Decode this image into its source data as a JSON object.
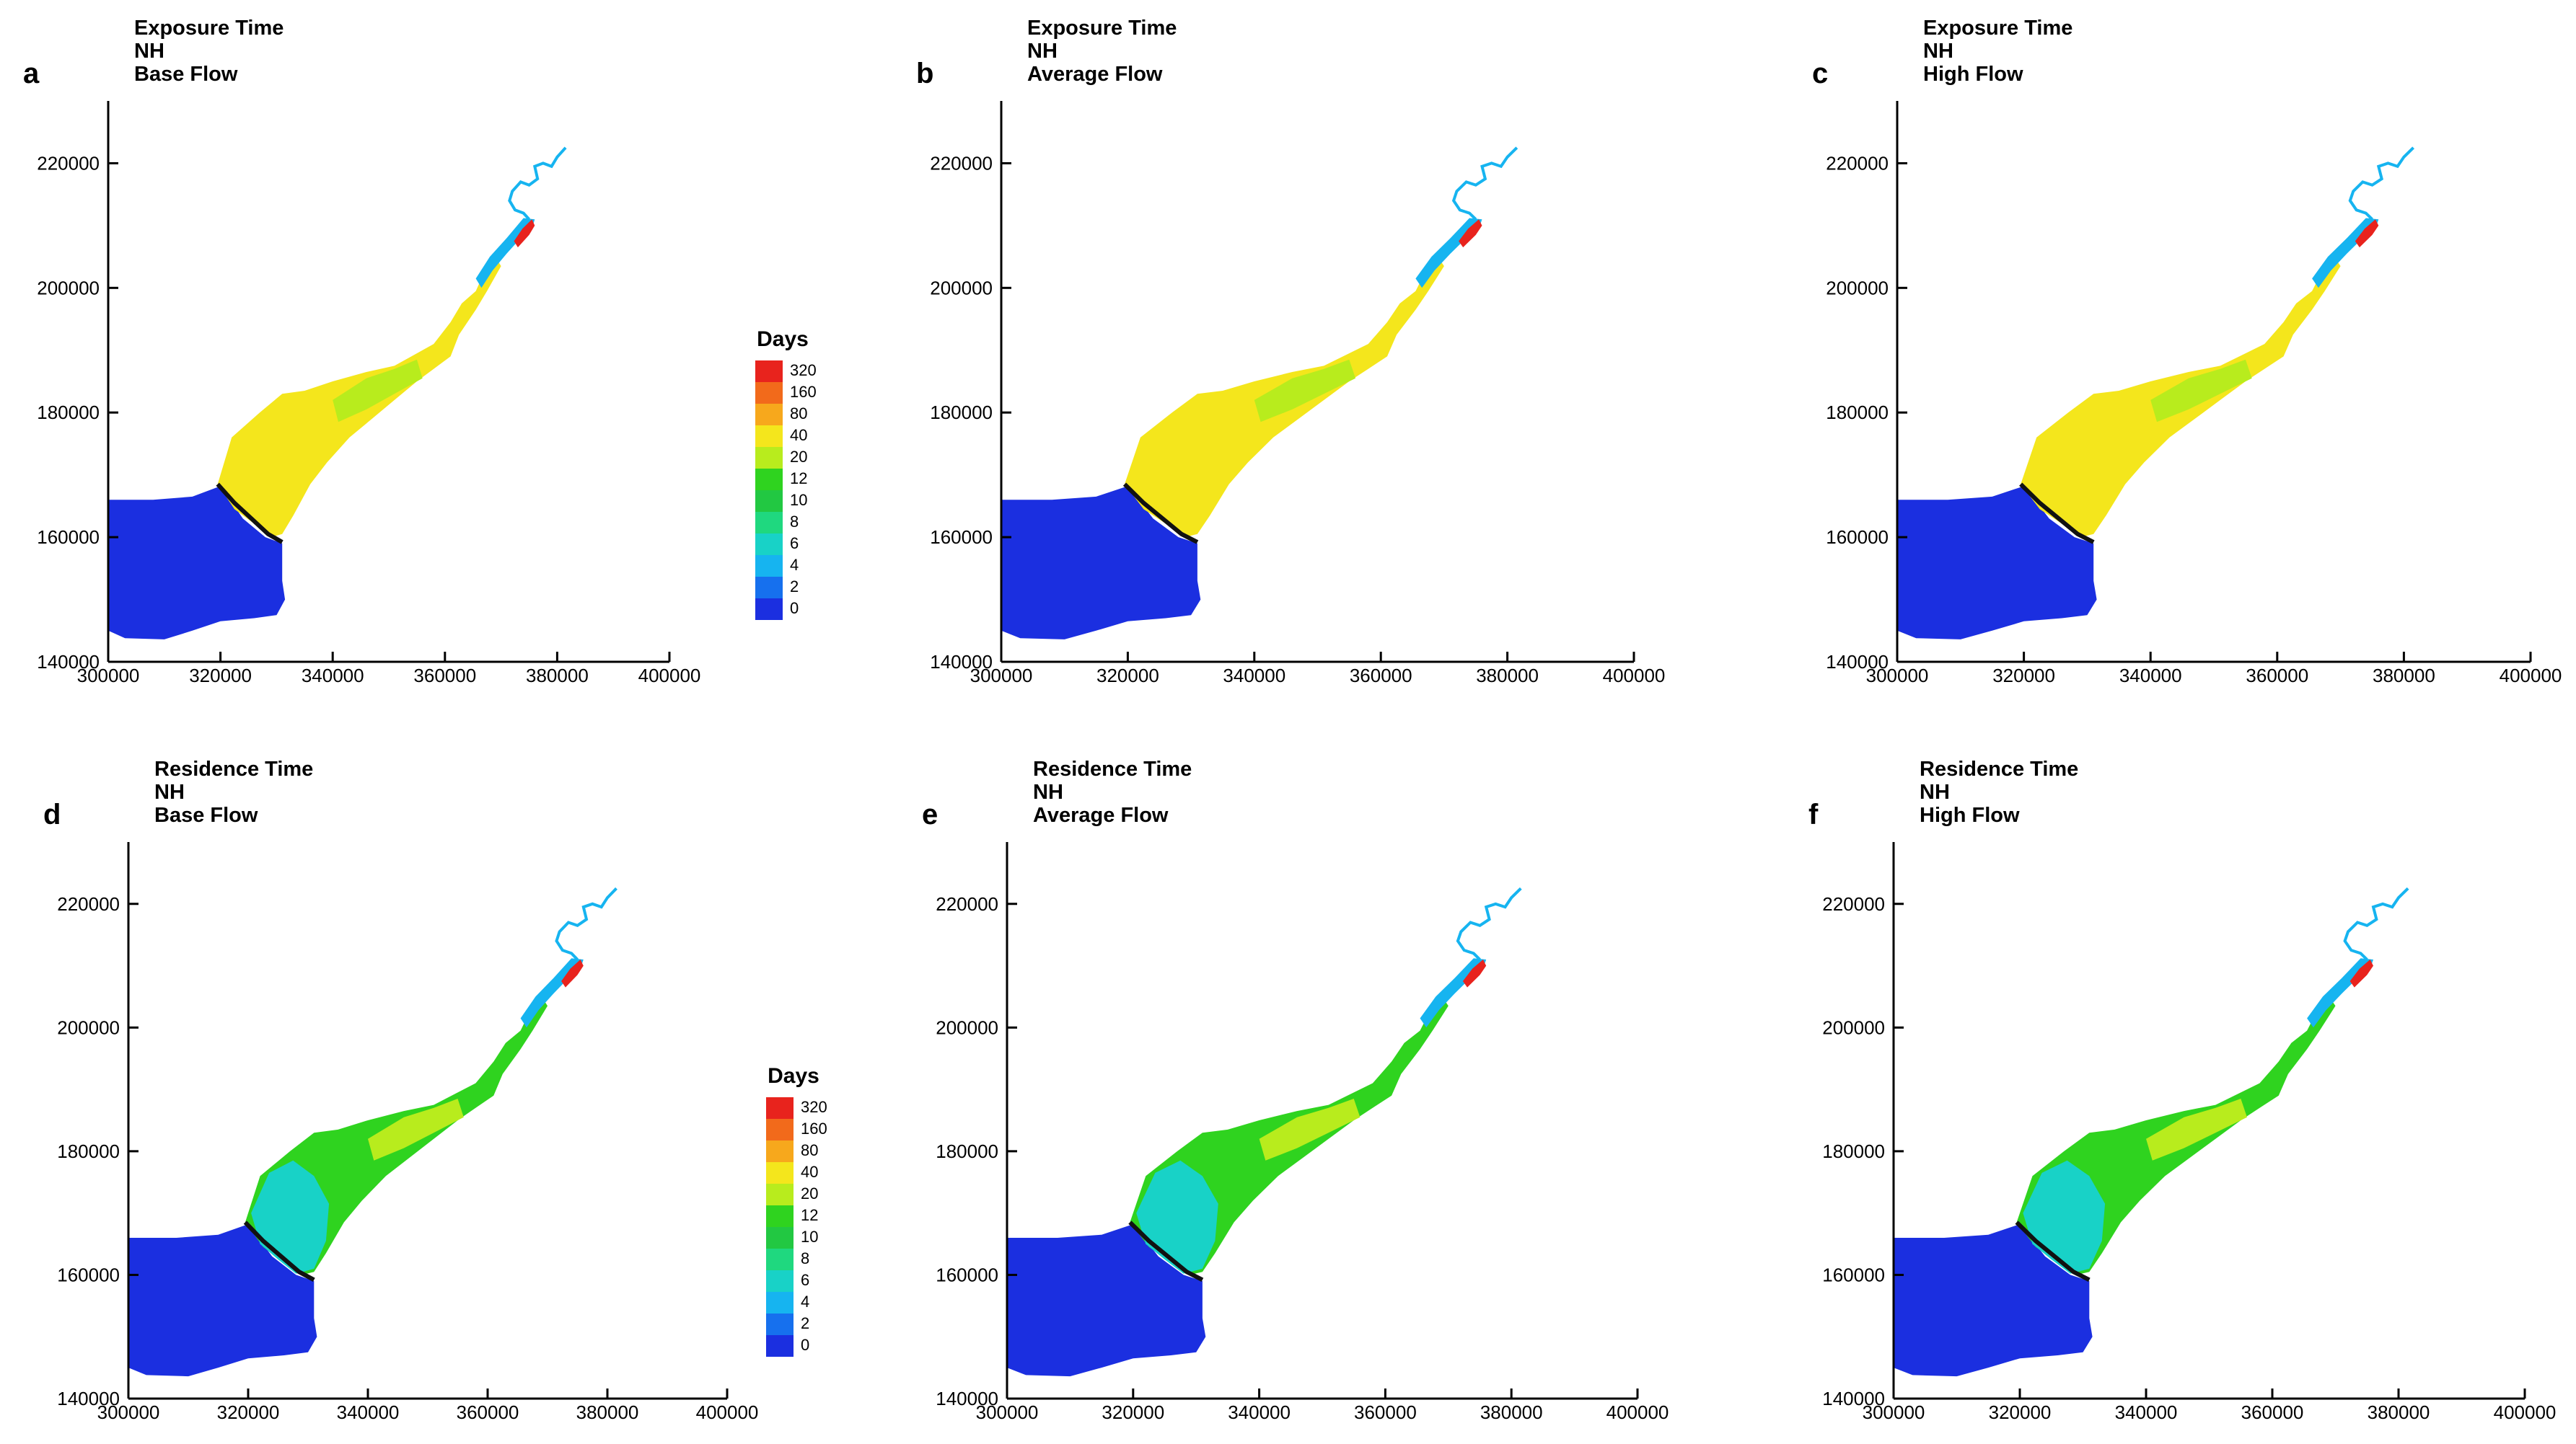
{
  "colors": {
    "axis": "#000000",
    "estuary_base": "#1f2ee0"
  },
  "legend": {
    "title": "Days",
    "levels": [
      "320",
      "160",
      "80",
      "40",
      "20",
      "12",
      "10",
      "8",
      "6",
      "4",
      "2",
      "0"
    ],
    "colors": [
      "#e8231d",
      "#f26a1b",
      "#f7a81c",
      "#f4e61c",
      "#b8ec1d",
      "#2fd31f",
      "#22c842",
      "#1fd87f",
      "#18d2c7",
      "#16b4f0",
      "#1670ee",
      "#1b2fe0"
    ]
  },
  "chart_data": [
    {
      "type": "map",
      "panel": "a",
      "title_lines": [
        "Exposure Time",
        "NH",
        "Base Flow"
      ],
      "xlabels": [
        "300000",
        "320000",
        "340000",
        "360000",
        "380000",
        "400000"
      ],
      "ylabels": [
        "140000",
        "160000",
        "180000",
        "200000",
        "220000"
      ],
      "xlim": [
        300000,
        400000
      ],
      "ylim": [
        140000,
        230000
      ],
      "fill_regions": {
        "ocean": "0",
        "bay": "40",
        "upper_bay": "20",
        "channel": "4",
        "river_mouth": "320"
      },
      "legend_visible": true
    },
    {
      "type": "map",
      "panel": "b",
      "title_lines": [
        "Exposure Time",
        "NH",
        "Average Flow"
      ],
      "xlabels": [
        "300000",
        "320000",
        "340000",
        "360000",
        "380000",
        "400000"
      ],
      "ylabels": [
        "140000",
        "160000",
        "180000",
        "200000",
        "220000"
      ],
      "xlim": [
        300000,
        400000
      ],
      "ylim": [
        140000,
        230000
      ],
      "fill_regions": {
        "ocean": "0",
        "bay": "40",
        "upper_bay": "20",
        "channel": "4",
        "river_mouth": "320"
      },
      "legend_visible": false
    },
    {
      "type": "map",
      "panel": "c",
      "title_lines": [
        "Exposure Time",
        "NH",
        "High Flow"
      ],
      "xlabels": [
        "300000",
        "320000",
        "340000",
        "360000",
        "380000",
        "400000"
      ],
      "ylabels": [
        "140000",
        "160000",
        "180000",
        "200000",
        "220000"
      ],
      "xlim": [
        300000,
        400000
      ],
      "ylim": [
        140000,
        230000
      ],
      "fill_regions": {
        "ocean": "0",
        "bay": "40",
        "upper_bay": "20",
        "channel": "4",
        "river_mouth": "320"
      },
      "legend_visible": false
    },
    {
      "type": "map",
      "panel": "d",
      "title_lines": [
        "Residence Time",
        "NH",
        "Base Flow"
      ],
      "xlabels": [
        "300000",
        "320000",
        "340000",
        "360000",
        "380000",
        "400000"
      ],
      "ylabels": [
        "140000",
        "160000",
        "180000",
        "200000",
        "220000"
      ],
      "xlim": [
        300000,
        400000
      ],
      "ylim": [
        140000,
        230000
      ],
      "fill_regions": {
        "ocean": "0",
        "bay": "12",
        "upper_bay": "20",
        "channel": "4",
        "river_mouth": "320",
        "bay_mouth": "6"
      },
      "legend_visible": true
    },
    {
      "type": "map",
      "panel": "e",
      "title_lines": [
        "Residence Time",
        "NH",
        "Average Flow"
      ],
      "xlabels": [
        "300000",
        "320000",
        "340000",
        "360000",
        "380000",
        "400000"
      ],
      "ylabels": [
        "140000",
        "160000",
        "180000",
        "200000",
        "220000"
      ],
      "xlim": [
        300000,
        400000
      ],
      "ylim": [
        140000,
        230000
      ],
      "fill_regions": {
        "ocean": "0",
        "bay": "12",
        "upper_bay": "20",
        "channel": "4",
        "river_mouth": "320",
        "bay_mouth": "6"
      },
      "legend_visible": false
    },
    {
      "type": "map",
      "panel": "f",
      "title_lines": [
        "Residence Time",
        "NH",
        "High Flow"
      ],
      "xlabels": [
        "300000",
        "320000",
        "340000",
        "360000",
        "380000",
        "400000"
      ],
      "ylabels": [
        "140000",
        "160000",
        "180000",
        "200000",
        "220000"
      ],
      "xlim": [
        300000,
        400000
      ],
      "ylim": [
        140000,
        230000
      ],
      "fill_regions": {
        "ocean": "0",
        "bay": "12",
        "upper_bay": "20",
        "channel": "4",
        "river_mouth": "320",
        "bay_mouth": "6"
      },
      "legend_visible": false
    }
  ]
}
